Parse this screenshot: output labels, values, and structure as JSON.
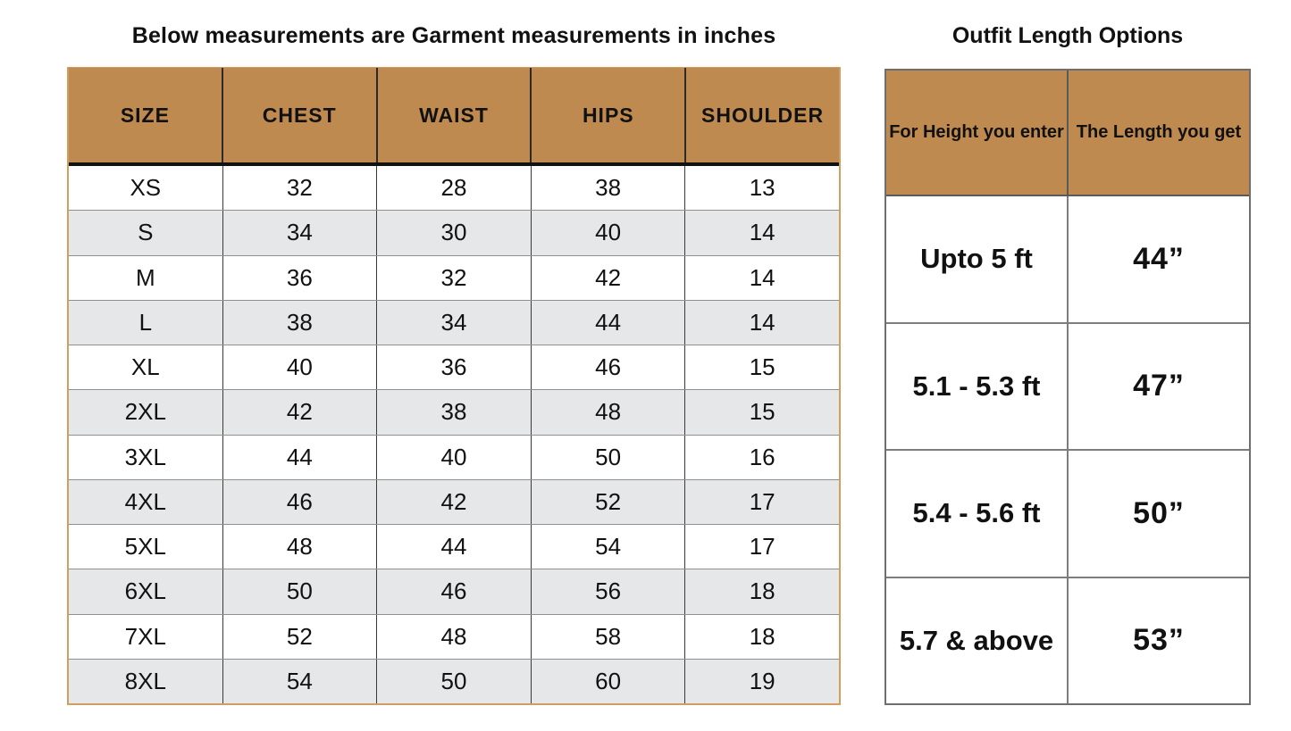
{
  "colors": {
    "header_bg": "#bf8a4f",
    "alt_row_bg": "#e6e7e9",
    "size_table_outer_border": "#cf9e60",
    "length_table_border": "#6e6e6e",
    "text": "#111111"
  },
  "chart_data": [
    {
      "type": "table",
      "title": "Below measurements are Garment measurements in inches",
      "columns": [
        "SIZE",
        "CHEST",
        "WAIST",
        "HIPS",
        "SHOULDER"
      ],
      "rows": [
        [
          "XS",
          "32",
          "28",
          "38",
          "13"
        ],
        [
          "S",
          "34",
          "30",
          "40",
          "14"
        ],
        [
          "M",
          "36",
          "32",
          "42",
          "14"
        ],
        [
          "L",
          "38",
          "34",
          "44",
          "14"
        ],
        [
          "XL",
          "40",
          "36",
          "46",
          "15"
        ],
        [
          "2XL",
          "42",
          "38",
          "48",
          "15"
        ],
        [
          "3XL",
          "44",
          "40",
          "50",
          "16"
        ],
        [
          "4XL",
          "46",
          "42",
          "52",
          "17"
        ],
        [
          "5XL",
          "48",
          "44",
          "54",
          "17"
        ],
        [
          "6XL",
          "50",
          "46",
          "56",
          "18"
        ],
        [
          "7XL",
          "52",
          "48",
          "58",
          "18"
        ],
        [
          "8XL",
          "54",
          "50",
          "60",
          "19"
        ]
      ]
    },
    {
      "type": "table",
      "title": "Outfit Length Options",
      "columns": [
        "For Height you enter",
        "The Length you get"
      ],
      "rows": [
        [
          "Upto 5 ft",
          "44”"
        ],
        [
          "5.1 - 5.3 ft",
          "47”"
        ],
        [
          "5.4 - 5.6 ft",
          "50”"
        ],
        [
          "5.7 & above",
          "53”"
        ]
      ]
    }
  ]
}
